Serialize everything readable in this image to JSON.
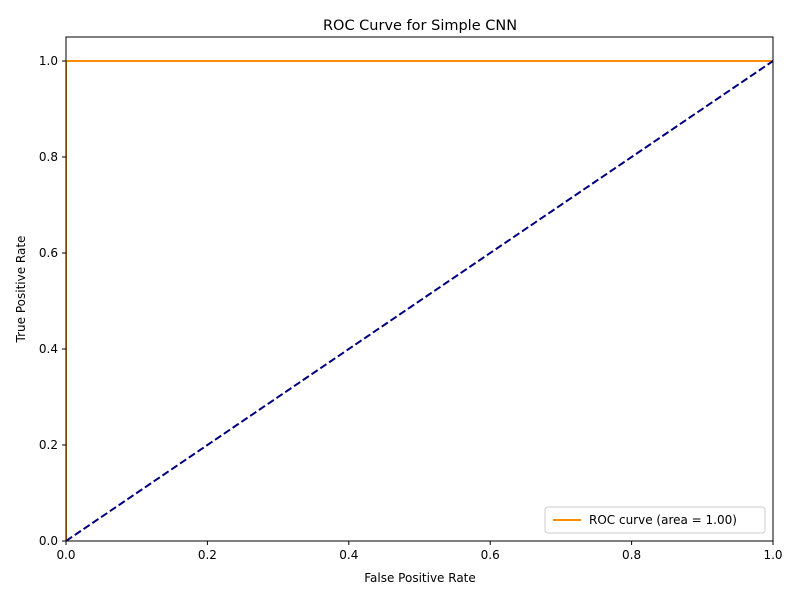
{
  "chart_data": {
    "type": "line",
    "title": "ROC Curve for Simple CNN",
    "xlabel": "False Positive Rate",
    "ylabel": "True Positive Rate",
    "xlim": [
      0.0,
      1.0
    ],
    "ylim": [
      0.0,
      1.05
    ],
    "x_ticks": [
      "0.0",
      "0.2",
      "0.4",
      "0.6",
      "0.8",
      "1.0"
    ],
    "y_ticks": [
      "0.0",
      "0.2",
      "0.4",
      "0.6",
      "0.8",
      "1.0"
    ],
    "grid": false,
    "legend_position": "lower-right",
    "series": [
      {
        "name": "ROC curve (area = 1.00)",
        "color": "#ff8c00",
        "style": "solid",
        "x": [
          0.0,
          0.0,
          1.0
        ],
        "y": [
          0.0,
          1.0,
          1.0
        ]
      },
      {
        "color": "#000080",
        "style": "dashed",
        "x": [
          0.0,
          1.0
        ],
        "y": [
          0.0,
          1.0
        ]
      }
    ]
  }
}
